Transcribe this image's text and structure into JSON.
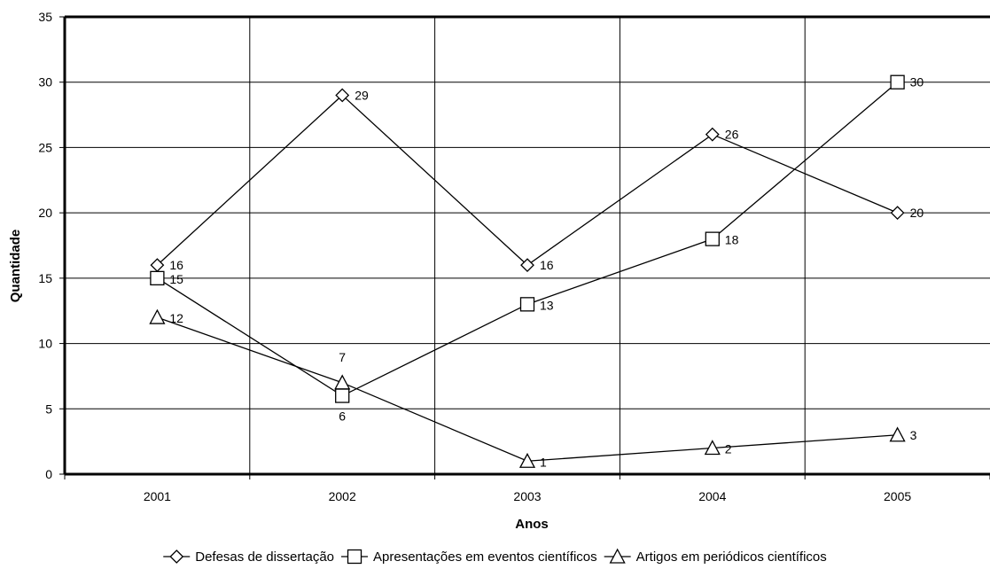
{
  "chart_data": {
    "type": "line",
    "categories": [
      "2001",
      "2002",
      "2003",
      "2004",
      "2005"
    ],
    "xlabel": "Anos",
    "ylabel": "Quantidade",
    "ylim": [
      0,
      35
    ],
    "yticks": [
      0,
      5,
      10,
      15,
      20,
      25,
      30,
      35
    ],
    "grid": true,
    "legend_position": "bottom",
    "series": [
      {
        "name": "Defesas de dissertação",
        "marker": "diamond",
        "values": [
          16,
          29,
          16,
          26,
          20
        ],
        "labels": [
          "16",
          "29",
          "16",
          "26",
          "20"
        ]
      },
      {
        "name": "Apresentações em eventos científicos",
        "marker": "square",
        "values": [
          15,
          6,
          13,
          18,
          30
        ],
        "labels": [
          "15",
          "6",
          "13",
          "18",
          "30"
        ]
      },
      {
        "name": "Artigos em periódicos científicos",
        "marker": "triangle",
        "values": [
          12,
          7,
          1,
          2,
          3
        ],
        "labels": [
          "12",
          "7",
          "1",
          "2",
          "3"
        ]
      }
    ]
  }
}
